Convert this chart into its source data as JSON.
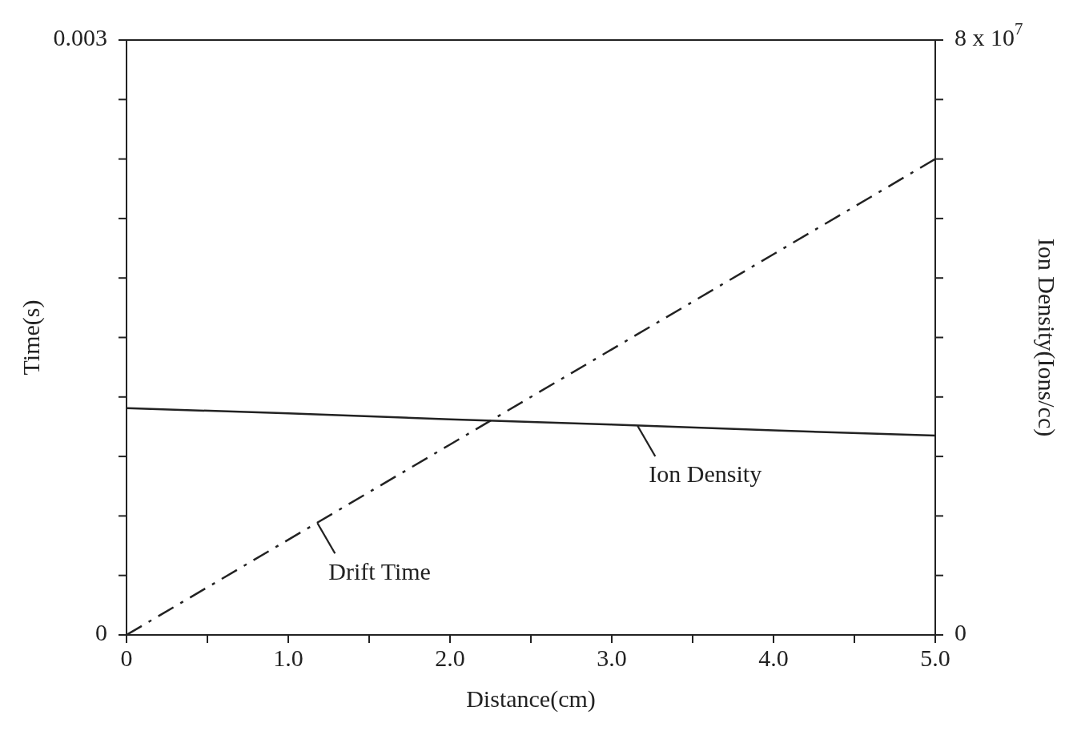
{
  "chart_data": {
    "type": "line",
    "xlabel": "Distance(cm)",
    "ylabel": "Time(s)",
    "y2label": "Ion Density(Ions/cc)",
    "x": [
      0,
      1,
      2,
      3,
      4,
      5
    ],
    "series": [
      {
        "color": "#222222",
        "line_style": "dashed",
        "values": [
          0,
          0.00048,
          0.00096,
          0.00144,
          0.00192,
          0.0024
        ]
      },
      {
        "color": "#222222",
        "line_style": "solid",
        "axis": "y2",
        "values": [
          30500000,
          29800000,
          29000000,
          28300000,
          27500000,
          26800000
        ]
      }
    ],
    "annotations": [
      {
        "text": "Drift Time",
        "x": 1.18,
        "y": 0.00057
      },
      {
        "text": "Ion Density",
        "x": 3.16,
        "y": 0.00106
      }
    ],
    "xlim": [
      0,
      5
    ],
    "xticks": [
      0,
      {
        "value": 0.5,
        "label": null
      },
      {
        "value": 1,
        "label": "1.0"
      },
      {
        "value": 1.5,
        "label": null
      },
      {
        "value": 2,
        "label": "2.0"
      },
      {
        "value": 2.5,
        "label": null
      },
      {
        "value": 3,
        "label": "3.0"
      },
      {
        "value": 3.5,
        "label": null
      },
      {
        "value": 4,
        "label": "4.0"
      },
      {
        "value": 4.5,
        "label": null
      },
      {
        "value": 5,
        "label": "5.0"
      }
    ],
    "ylim": [
      0,
      0.003
    ],
    "yticks": [
      0,
      {
        "value": 0.0003,
        "label": null
      },
      {
        "value": 0.0006,
        "label": null
      },
      {
        "value": 0.0009,
        "label": null
      },
      {
        "value": 0.0012,
        "label": null
      },
      {
        "value": 0.0015,
        "label": null
      },
      {
        "value": 0.0018,
        "label": null
      },
      {
        "value": 0.0021,
        "label": null
      },
      {
        "value": 0.0024,
        "label": null
      },
      {
        "value": 0.0027,
        "label": null
      },
      0.003
    ],
    "y2lim": [
      0,
      80000000
    ],
    "y2ticks": [
      0,
      {
        "value": 8000000,
        "label": null
      },
      {
        "value": 16000000,
        "label": null
      },
      {
        "value": 24000000,
        "label": null
      },
      {
        "value": 32000000,
        "label": null
      },
      {
        "value": 40000000,
        "label": null
      },
      {
        "value": 48000000,
        "label": null
      },
      {
        "value": 56000000,
        "label": null
      },
      {
        "value": 64000000,
        "label": null
      },
      {
        "value": 72000000,
        "label": null
      },
      {
        "value": 80000000,
        "label": "8 x 10$^{7}$"
      }
    ],
    "grid": false,
    "legend": false,
    "marker": "none"
  }
}
